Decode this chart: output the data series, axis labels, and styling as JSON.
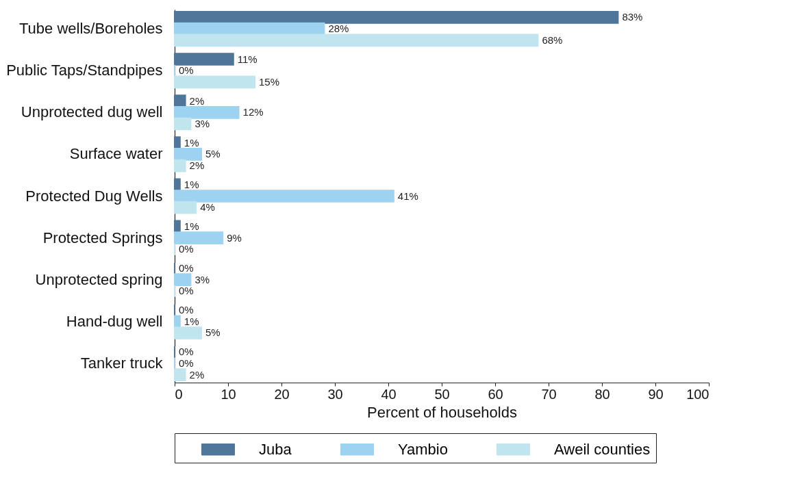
{
  "chart_data": {
    "type": "bar",
    "orientation": "horizontal",
    "xlabel": "Percent of households",
    "categories": [
      "Tube wells/Boreholes",
      "Public Taps/Standpipes",
      "Unprotected dug well",
      "Surface water",
      "Protected Dug Wells",
      "Protected Springs",
      "Unprotected spring",
      "Hand-dug well",
      "Tanker truck"
    ],
    "series": [
      {
        "name": "Juba",
        "color": "#4f7598",
        "values": [
          83,
          11,
          2,
          1,
          1,
          1,
          0,
          0,
          0
        ],
        "value_labels": [
          "83%",
          "11%",
          "2%",
          "1%",
          "1%",
          "1%",
          "0%",
          "0%",
          "0%"
        ]
      },
      {
        "name": "Yambio",
        "color": "#9dd3f1",
        "values": [
          28,
          0,
          12,
          5,
          41,
          9,
          3,
          1,
          0
        ],
        "value_labels": [
          "28%",
          "0%",
          "12%",
          "5%",
          "41%",
          "9%",
          "3%",
          "1%",
          "0%"
        ]
      },
      {
        "name": "Aweil counties",
        "color": "#c0e5ee",
        "values": [
          68,
          15,
          3,
          2,
          4,
          0,
          0,
          5,
          2
        ],
        "value_labels": [
          "68%",
          "15%",
          "3%",
          "2%",
          "4%",
          "0%",
          "0%",
          "5%",
          "2%"
        ]
      }
    ],
    "xlim": [
      0,
      100
    ],
    "xticks": [
      0,
      10,
      20,
      30,
      40,
      50,
      60,
      70,
      80,
      90,
      100
    ],
    "grid": false,
    "legend": "bottom"
  }
}
